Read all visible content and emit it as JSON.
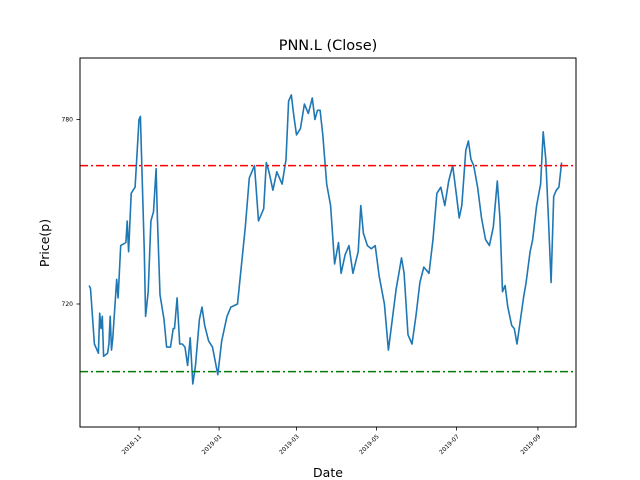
{
  "chart_data": {
    "type": "line",
    "title": "PNN.L (Close)",
    "xlabel": "Date",
    "ylabel": "Price(p)",
    "grid": false,
    "legend": "none",
    "xlim": [
      "2018-09-17",
      "2019-09-30"
    ],
    "ylim": [
      680,
      800
    ],
    "x_ticks": [
      "2018-11",
      "2019-01",
      "2019-03",
      "2019-05",
      "2019-07",
      "2019-09"
    ],
    "y_ticks": [
      720,
      780
    ],
    "reference_lines": [
      {
        "value": 765,
        "color": "#ff0000",
        "style": "dash-dot"
      },
      {
        "value": 698,
        "color": "#008000",
        "style": "dash-dot"
      }
    ],
    "series": [
      {
        "color": "#1f77b4",
        "points": [
          [
            "2018-09-24",
            726
          ],
          [
            "2018-09-25",
            725
          ],
          [
            "2018-09-27",
            713
          ],
          [
            "2018-09-28",
            707
          ],
          [
            "2018-10-01",
            704
          ],
          [
            "2018-10-02",
            717
          ],
          [
            "2018-10-03",
            712
          ],
          [
            "2018-10-04",
            716
          ],
          [
            "2018-10-05",
            703
          ],
          [
            "2018-10-08",
            704
          ],
          [
            "2018-10-09",
            707
          ],
          [
            "2018-10-10",
            716
          ],
          [
            "2018-10-11",
            705
          ],
          [
            "2018-10-12",
            709
          ],
          [
            "2018-10-15",
            728
          ],
          [
            "2018-10-16",
            722
          ],
          [
            "2018-10-18",
            739
          ],
          [
            "2018-10-22",
            740
          ],
          [
            "2018-10-23",
            747
          ],
          [
            "2018-10-24",
            737
          ],
          [
            "2018-10-26",
            756
          ],
          [
            "2018-10-29",
            758
          ],
          [
            "2018-11-01",
            780
          ],
          [
            "2018-11-02",
            781
          ],
          [
            "2018-11-05",
            737
          ],
          [
            "2018-11-06",
            716
          ],
          [
            "2018-11-08",
            724
          ],
          [
            "2018-11-10",
            747
          ],
          [
            "2018-11-12",
            750
          ],
          [
            "2018-11-14",
            764
          ],
          [
            "2018-11-15",
            748
          ],
          [
            "2018-11-17",
            723
          ],
          [
            "2018-11-20",
            715
          ],
          [
            "2018-11-22",
            706
          ],
          [
            "2018-11-25",
            706
          ],
          [
            "2018-11-27",
            712
          ],
          [
            "2018-11-28",
            712
          ],
          [
            "2018-11-30",
            722
          ],
          [
            "2018-12-02",
            707
          ],
          [
            "2018-12-04",
            707
          ],
          [
            "2018-12-06",
            706
          ],
          [
            "2018-12-08",
            700
          ],
          [
            "2018-12-10",
            709
          ],
          [
            "2018-12-12",
            694
          ],
          [
            "2018-12-14",
            700
          ],
          [
            "2018-12-17",
            715
          ],
          [
            "2018-12-19",
            719
          ],
          [
            "2018-12-21",
            713
          ],
          [
            "2018-12-24",
            708
          ],
          [
            "2018-12-27",
            706
          ],
          [
            "2018-12-31",
            697
          ],
          [
            "2019-01-03",
            708
          ],
          [
            "2019-01-07",
            716
          ],
          [
            "2019-01-10",
            719
          ],
          [
            "2019-01-15",
            720
          ],
          [
            "2019-01-21",
            745
          ],
          [
            "2019-01-24",
            761
          ],
          [
            "2019-01-28",
            765
          ],
          [
            "2019-01-31",
            747
          ],
          [
            "2019-02-04",
            751
          ],
          [
            "2019-02-06",
            766
          ],
          [
            "2019-02-08",
            763
          ],
          [
            "2019-02-11",
            757
          ],
          [
            "2019-02-14",
            763
          ],
          [
            "2019-02-18",
            759
          ],
          [
            "2019-02-21",
            767
          ],
          [
            "2019-02-23",
            786
          ],
          [
            "2019-02-25",
            788
          ],
          [
            "2019-02-27",
            781
          ],
          [
            "2019-03-01",
            775
          ],
          [
            "2019-03-04",
            777
          ],
          [
            "2019-03-07",
            785
          ],
          [
            "2019-03-10",
            782
          ],
          [
            "2019-03-13",
            787
          ],
          [
            "2019-03-15",
            780
          ],
          [
            "2019-03-17",
            783
          ],
          [
            "2019-03-19",
            783
          ],
          [
            "2019-03-21",
            775
          ],
          [
            "2019-03-24",
            759
          ],
          [
            "2019-03-27",
            752
          ],
          [
            "2019-03-30",
            733
          ],
          [
            "2019-04-02",
            740
          ],
          [
            "2019-04-04",
            730
          ],
          [
            "2019-04-07",
            736
          ],
          [
            "2019-04-10",
            739
          ],
          [
            "2019-04-13",
            730
          ],
          [
            "2019-04-17",
            737
          ],
          [
            "2019-04-19",
            752
          ],
          [
            "2019-04-21",
            743
          ],
          [
            "2019-04-24",
            739
          ],
          [
            "2019-04-27",
            738
          ],
          [
            "2019-04-30",
            739
          ],
          [
            "2019-05-03",
            729
          ],
          [
            "2019-05-07",
            720
          ],
          [
            "2019-05-10",
            705
          ],
          [
            "2019-05-13",
            715
          ],
          [
            "2019-05-16",
            725
          ],
          [
            "2019-05-18",
            730
          ],
          [
            "2019-05-20",
            735
          ],
          [
            "2019-05-22",
            730
          ],
          [
            "2019-05-25",
            710
          ],
          [
            "2019-05-28",
            707
          ],
          [
            "2019-05-31",
            716
          ],
          [
            "2019-06-03",
            727
          ],
          [
            "2019-06-06",
            732
          ],
          [
            "2019-06-10",
            730
          ],
          [
            "2019-06-13",
            741
          ],
          [
            "2019-06-16",
            756
          ],
          [
            "2019-06-19",
            758
          ],
          [
            "2019-06-22",
            752
          ],
          [
            "2019-06-25",
            760
          ],
          [
            "2019-06-28",
            765
          ],
          [
            "2019-07-01",
            755
          ],
          [
            "2019-07-03",
            748
          ],
          [
            "2019-07-05",
            752
          ],
          [
            "2019-07-08",
            770
          ],
          [
            "2019-07-10",
            773
          ],
          [
            "2019-07-12",
            767
          ],
          [
            "2019-07-14",
            765
          ],
          [
            "2019-07-17",
            758
          ],
          [
            "2019-07-20",
            748
          ],
          [
            "2019-07-23",
            741
          ],
          [
            "2019-07-26",
            739
          ],
          [
            "2019-07-29",
            745
          ],
          [
            "2019-08-01",
            760
          ],
          [
            "2019-08-03",
            748
          ],
          [
            "2019-08-05",
            724
          ],
          [
            "2019-08-07",
            726
          ],
          [
            "2019-08-09",
            719
          ],
          [
            "2019-08-12",
            713
          ],
          [
            "2019-08-14",
            712
          ],
          [
            "2019-08-16",
            707
          ],
          [
            "2019-08-19",
            716
          ],
          [
            "2019-08-21",
            722
          ],
          [
            "2019-08-23",
            727
          ],
          [
            "2019-08-26",
            737
          ],
          [
            "2019-08-28",
            741
          ],
          [
            "2019-08-31",
            752
          ],
          [
            "2019-09-03",
            759
          ],
          [
            "2019-09-05",
            776
          ],
          [
            "2019-09-07",
            767
          ],
          [
            "2019-09-09",
            748
          ],
          [
            "2019-09-11",
            727
          ],
          [
            "2019-09-13",
            755
          ],
          [
            "2019-09-15",
            757
          ],
          [
            "2019-09-17",
            758
          ],
          [
            "2019-09-19",
            766
          ]
        ]
      }
    ]
  }
}
